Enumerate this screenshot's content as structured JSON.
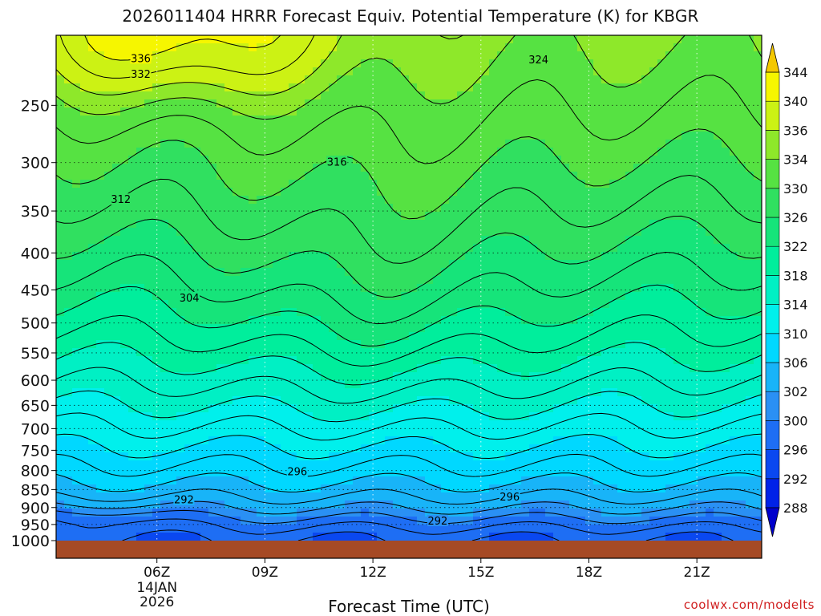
{
  "chart_data": {
    "type": "contour",
    "title": "2026011404 HRRR Forecast Equiv. Potential Temperature (K) for KBGR",
    "xlabel": "Forecast Time (UTC)",
    "ylabel": "",
    "credit": "coolwx.com/modelts",
    "x_ticks": [
      {
        "hour": 6,
        "label": "06Z",
        "sub1": "14JAN",
        "sub2": "2026"
      },
      {
        "hour": 9,
        "label": "09Z"
      },
      {
        "hour": 12,
        "label": "12Z"
      },
      {
        "hour": 15,
        "label": "15Z"
      },
      {
        "hour": 18,
        "label": "18Z"
      },
      {
        "hour": 21,
        "label": "21Z"
      }
    ],
    "xlim": [
      3.2,
      22.8
    ],
    "y_ticks": [
      250,
      300,
      350,
      400,
      450,
      500,
      550,
      600,
      650,
      700,
      750,
      800,
      850,
      900,
      950,
      1000
    ],
    "ylim_hpa": [
      200,
      1000
    ],
    "y_scale": "log-pressure",
    "grid": true,
    "contour_labels": [
      {
        "text": "336",
        "t": 5.55,
        "p": 215
      },
      {
        "text": "332",
        "t": 5.55,
        "p": 226
      },
      {
        "text": "324",
        "t": 16.6,
        "p": 216
      },
      {
        "text": "316",
        "t": 11.0,
        "p": 299
      },
      {
        "text": "312",
        "t": 5.0,
        "p": 337
      },
      {
        "text": "304",
        "t": 6.9,
        "p": 461
      },
      {
        "text": "296",
        "t": 9.9,
        "p": 802
      },
      {
        "text": "296",
        "t": 15.8,
        "p": 869
      },
      {
        "text": "292",
        "t": 6.75,
        "p": 877
      },
      {
        "text": "292",
        "t": 13.8,
        "p": 938
      }
    ],
    "legend": {
      "placement": "right",
      "levels": [
        288,
        292,
        296,
        300,
        302,
        306,
        310,
        314,
        318,
        322,
        326,
        330,
        334,
        336,
        340,
        344
      ],
      "colors": [
        "#0000cc",
        "#0022e8",
        "#0a48f0",
        "#1e6ef4",
        "#2a90f4",
        "#18b4f8",
        "#00d8ff",
        "#00f0ec",
        "#00f0c4",
        "#00ee9c",
        "#16e47a",
        "#30e060",
        "#56e242",
        "#8ee82a",
        "#ccf214",
        "#f6f600",
        "#f4c800"
      ]
    },
    "ground_color": "#a64a25"
  }
}
